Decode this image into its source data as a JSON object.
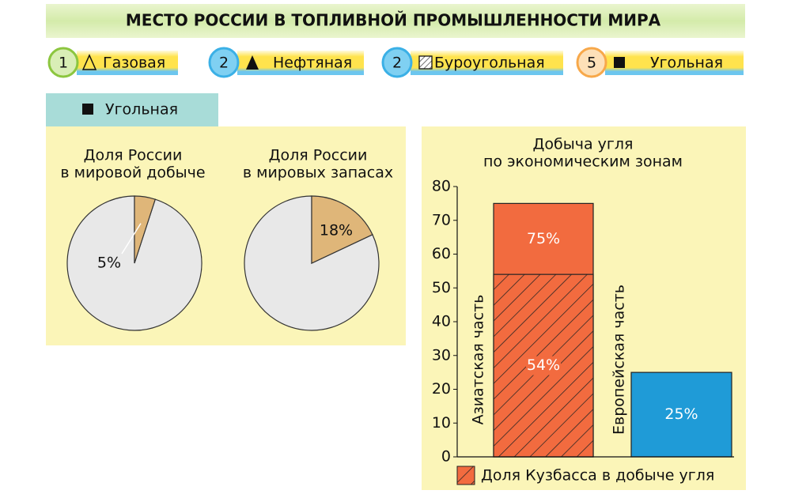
{
  "header": {
    "title": "МЕСТО РОССИИ В ТОПЛИВНОЙ ПРОМЫШЛЕННОСТИ МИРА"
  },
  "ranks": [
    {
      "rank": 1,
      "label": "Газовая"
    },
    {
      "rank": 2,
      "label": "Нефтяная"
    },
    {
      "rank": 2,
      "label": "Буроугольная"
    },
    {
      "rank": 5,
      "label": "Угольная"
    }
  ],
  "section": {
    "title": "Угольная"
  },
  "chart_data": [
    {
      "type": "pie",
      "title": [
        "Доля России",
        "в мировой добыче"
      ],
      "values": [
        5,
        95
      ],
      "value_labels": [
        "5%",
        null
      ],
      "colors": [
        "#dfb679",
        "#e8e8e8"
      ]
    },
    {
      "type": "pie",
      "title": [
        "Доля России",
        "в мировых запасах"
      ],
      "values": [
        18,
        82
      ],
      "value_labels": [
        "18%",
        null
      ],
      "colors": [
        "#dfb679",
        "#e8e8e8"
      ]
    },
    {
      "type": "bar",
      "title": [
        "Добыча угля",
        "по экономическим зонам"
      ],
      "categories": [
        "Азиатская часть",
        "Европейская часть"
      ],
      "series": [
        {
          "values": [
            75,
            25
          ],
          "value_labels": [
            "75%",
            "25%"
          ],
          "colors": [
            "#f26b3f",
            "#1f9bd7"
          ]
        },
        {
          "name": "Доля Кузбасса в добыче угля",
          "values": [
            54,
            null
          ],
          "value_labels": [
            "54%",
            null
          ],
          "color": "#f26b3f",
          "hatch": true
        }
      ],
      "ylim": [
        0,
        80
      ],
      "yticks": [
        0,
        10,
        20,
        30,
        40,
        50,
        60,
        70,
        80
      ]
    }
  ]
}
